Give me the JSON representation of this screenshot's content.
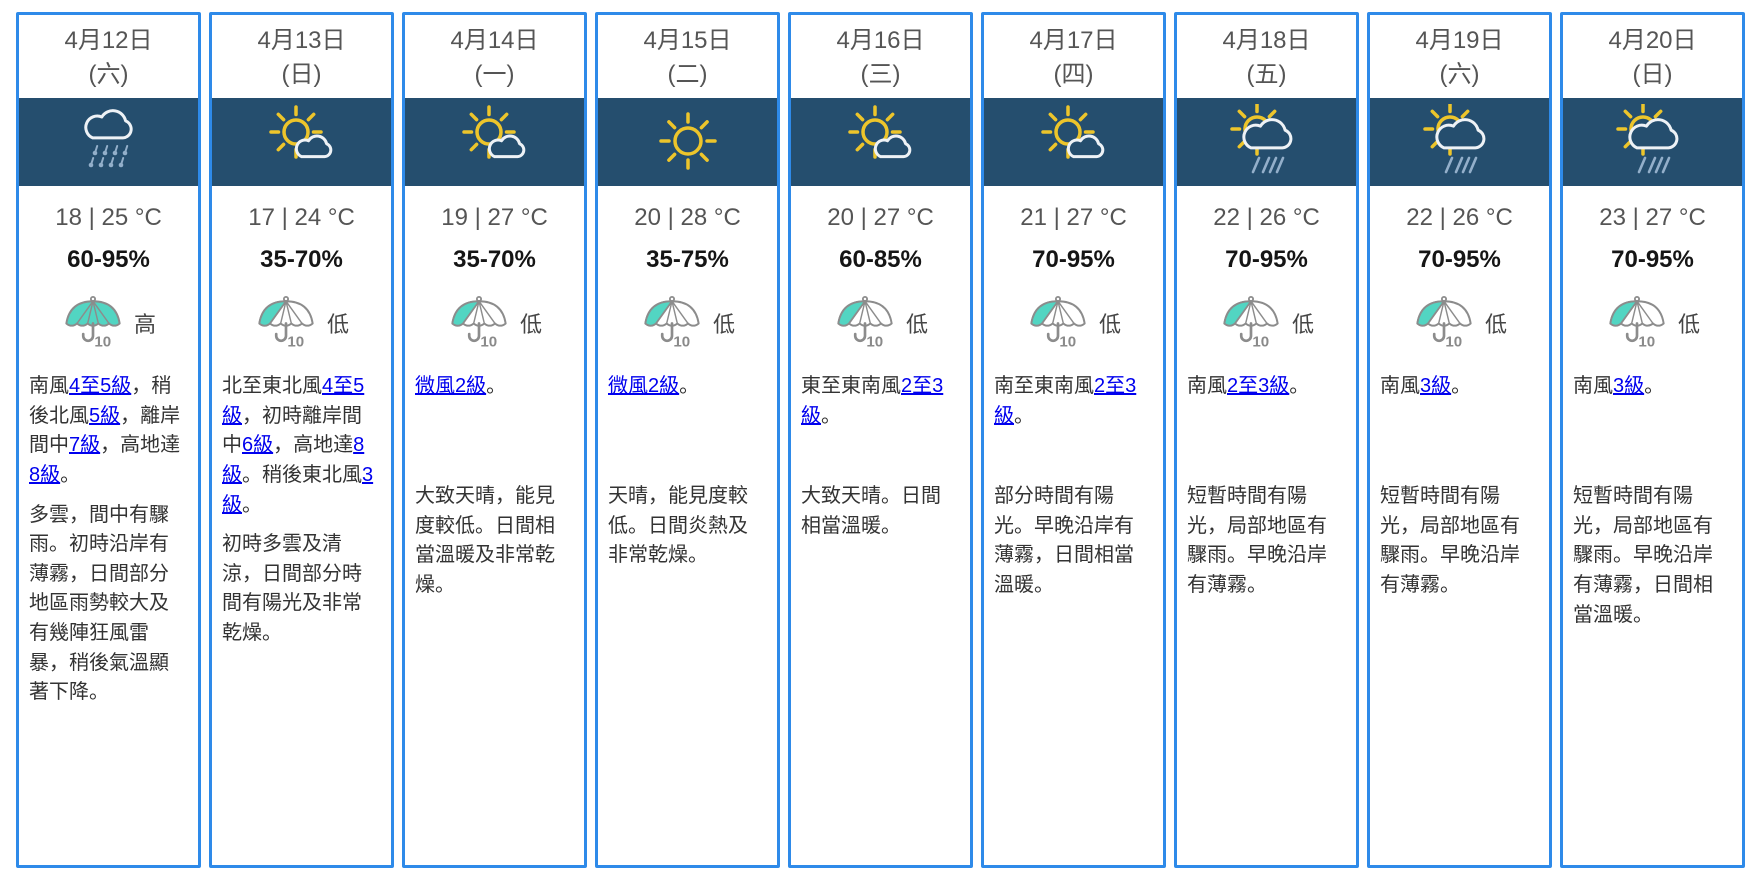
{
  "colors": {
    "card_border": "#2e8ae9",
    "icon_band_bg": "#254e6e",
    "link_blue": "#0000ee",
    "psr_teal": "#52d5c2",
    "psr_outline_gray": "#8c8c8c",
    "sun_yellow": "#edc52b",
    "cloud_white": "#eef2f6",
    "rain_blue": "#93afca",
    "date_text": "#555555",
    "body_text": "#333333"
  },
  "psr_scale_max": "10",
  "days": [
    {
      "date": "4月12日",
      "weekday": "(六)",
      "icon": "rain-cloud-icon",
      "temp_range": "18 | 25 °C",
      "humidity_range": "60-95%",
      "psr_label": "高",
      "psr_level": "high",
      "wind": [
        {
          "text": "南風"
        },
        {
          "text": "4至5級",
          "link": true
        },
        {
          "text": "，稍後北風"
        },
        {
          "text": "5級",
          "link": true
        },
        {
          "text": "，離岸間中"
        },
        {
          "text": "7級",
          "link": true
        },
        {
          "text": "，高地達"
        },
        {
          "text": "8級",
          "link": true
        },
        {
          "text": "。"
        }
      ],
      "description": "多雲，間中有驟雨。初時沿岸有薄霧，日間部分地區雨勢較大及有幾陣狂風雷暴，稍後氣溫顯著下降。"
    },
    {
      "date": "4月13日",
      "weekday": "(日)",
      "icon": "sun-cloud-icon",
      "temp_range": "17 | 24 °C",
      "humidity_range": "35-70%",
      "psr_label": "低",
      "psr_level": "low",
      "wind": [
        {
          "text": "北至東北風"
        },
        {
          "text": "4至5級",
          "link": true
        },
        {
          "text": "，初時離岸間中"
        },
        {
          "text": "6級",
          "link": true
        },
        {
          "text": "，高地達"
        },
        {
          "text": "8級",
          "link": true
        },
        {
          "text": "。稍後東北風"
        },
        {
          "text": "3級",
          "link": true
        },
        {
          "text": "。"
        }
      ],
      "description": "初時多雲及清涼，日間部分時間有陽光及非常乾燥。"
    },
    {
      "date": "4月14日",
      "weekday": "(一)",
      "icon": "sun-cloud-icon",
      "temp_range": "19 | 27 °C",
      "humidity_range": "35-70%",
      "psr_label": "低",
      "psr_level": "low",
      "wind": [
        {
          "text": "微風2級",
          "link": true
        },
        {
          "text": "。"
        }
      ],
      "description": "大致天晴，能見度較低。日間相當溫暖及非常乾燥。"
    },
    {
      "date": "4月15日",
      "weekday": "(二)",
      "icon": "sun-icon",
      "temp_range": "20 | 28 °C",
      "humidity_range": "35-75%",
      "psr_label": "低",
      "psr_level": "low",
      "wind": [
        {
          "text": "微風2級",
          "link": true
        },
        {
          "text": "。"
        }
      ],
      "description": "天晴，能見度較低。日間炎熱及非常乾燥。"
    },
    {
      "date": "4月16日",
      "weekday": "(三)",
      "icon": "sun-cloud-icon",
      "temp_range": "20 | 27 °C",
      "humidity_range": "60-85%",
      "psr_label": "低",
      "psr_level": "low",
      "wind": [
        {
          "text": "東至東南風"
        },
        {
          "text": "2至3級",
          "link": true
        },
        {
          "text": "。"
        }
      ],
      "description": "大致天晴。日間相當溫暖。"
    },
    {
      "date": "4月17日",
      "weekday": "(四)",
      "icon": "sun-cloud-icon",
      "temp_range": "21 | 27 °C",
      "humidity_range": "70-95%",
      "psr_label": "低",
      "psr_level": "low",
      "wind": [
        {
          "text": "南至東南風"
        },
        {
          "text": "2至3級",
          "link": true
        },
        {
          "text": "。"
        }
      ],
      "description": "部分時間有陽光。早晚沿岸有薄霧，日間相當溫暖。"
    },
    {
      "date": "4月18日",
      "weekday": "(五)",
      "icon": "sun-cloud-rain-icon",
      "temp_range": "22 | 26 °C",
      "humidity_range": "70-95%",
      "psr_label": "低",
      "psr_level": "low",
      "wind": [
        {
          "text": "南風"
        },
        {
          "text": "2至3級",
          "link": true
        },
        {
          "text": "。"
        }
      ],
      "description": "短暫時間有陽光，局部地區有驟雨。早晚沿岸有薄霧。"
    },
    {
      "date": "4月19日",
      "weekday": "(六)",
      "icon": "sun-cloud-rain-icon",
      "temp_range": "22 | 26 °C",
      "humidity_range": "70-95%",
      "psr_label": "低",
      "psr_level": "low",
      "wind": [
        {
          "text": "南風"
        },
        {
          "text": "3級",
          "link": true
        },
        {
          "text": "。"
        }
      ],
      "description": "短暫時間有陽光，局部地區有驟雨。早晚沿岸有薄霧。"
    },
    {
      "date": "4月20日",
      "weekday": "(日)",
      "icon": "sun-cloud-rain-icon",
      "temp_range": "23 | 27 °C",
      "humidity_range": "70-95%",
      "psr_label": "低",
      "psr_level": "low",
      "wind": [
        {
          "text": "南風"
        },
        {
          "text": "3級",
          "link": true
        },
        {
          "text": "。"
        }
      ],
      "description": "短暫時間有陽光，局部地區有驟雨。早晚沿岸有薄霧，日間相當溫暖。"
    }
  ]
}
